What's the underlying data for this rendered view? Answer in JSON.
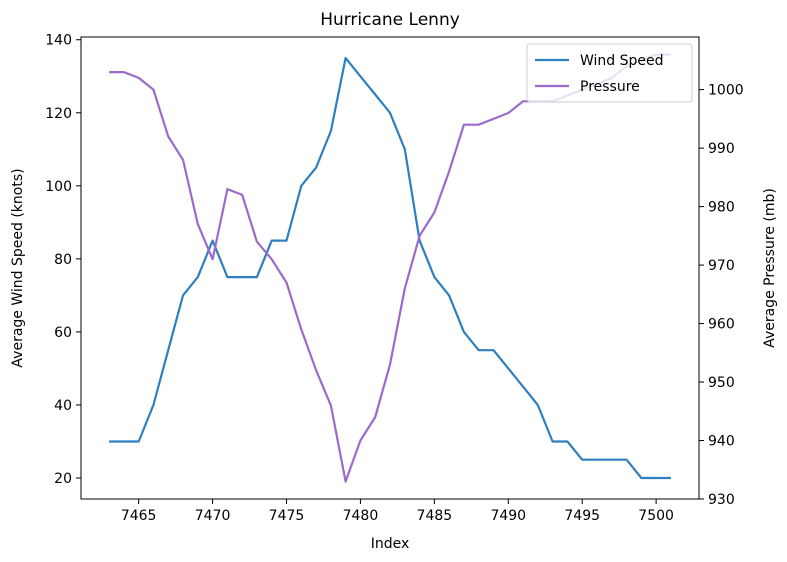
{
  "chart_data": {
    "type": "line",
    "title": "Hurricane Lenny",
    "xlabel": "Index",
    "ylabel_left": "Average Wind Speed (knots)",
    "ylabel_right": "Average Pressure (mb)",
    "xlim": [
      7461.1,
      7502.9
    ],
    "ylim_left": [
      14.25,
      140.75
    ],
    "ylim_right": [
      930,
      1009
    ],
    "x_ticks": [
      7465,
      7470,
      7475,
      7480,
      7485,
      7490,
      7495,
      7500
    ],
    "y_ticks_left": [
      20,
      40,
      60,
      80,
      100,
      120,
      140
    ],
    "y_ticks_right": [
      930,
      940,
      950,
      960,
      970,
      980,
      990,
      1000
    ],
    "grid": false,
    "legend_position": "upper right",
    "x": [
      7463,
      7464,
      7465,
      7466,
      7467,
      7468,
      7469,
      7470,
      7471,
      7472,
      7473,
      7474,
      7475,
      7476,
      7477,
      7478,
      7479,
      7480,
      7481,
      7482,
      7483,
      7484,
      7485,
      7486,
      7487,
      7488,
      7489,
      7490,
      7491,
      7492,
      7493,
      7494,
      7495,
      7496,
      7497,
      7498,
      7499,
      7500,
      7501
    ],
    "series": [
      {
        "name": "Wind Speed",
        "axis": "left",
        "color": "#2f7fbf",
        "values": [
          30,
          30,
          30,
          40,
          55,
          70,
          75,
          85,
          75,
          75,
          75,
          85,
          85,
          100,
          105,
          115,
          135,
          130,
          125,
          120,
          110,
          85,
          75,
          70,
          60,
          55,
          55,
          50,
          45,
          40,
          30,
          30,
          25,
          25,
          25,
          25,
          20,
          20,
          20
        ]
      },
      {
        "name": "Pressure",
        "axis": "right",
        "color": "#9b6bcc",
        "values": [
          1003,
          1003,
          1002,
          1000,
          992,
          988,
          977,
          971,
          983,
          982,
          974,
          971,
          967,
          959,
          952,
          946,
          933,
          940,
          944,
          953,
          966,
          975,
          979,
          986,
          994,
          994,
          995,
          996,
          998,
          998,
          998,
          999,
          1000,
          1001,
          1002,
          1004,
          1005,
          1006,
          1006
        ]
      }
    ]
  }
}
